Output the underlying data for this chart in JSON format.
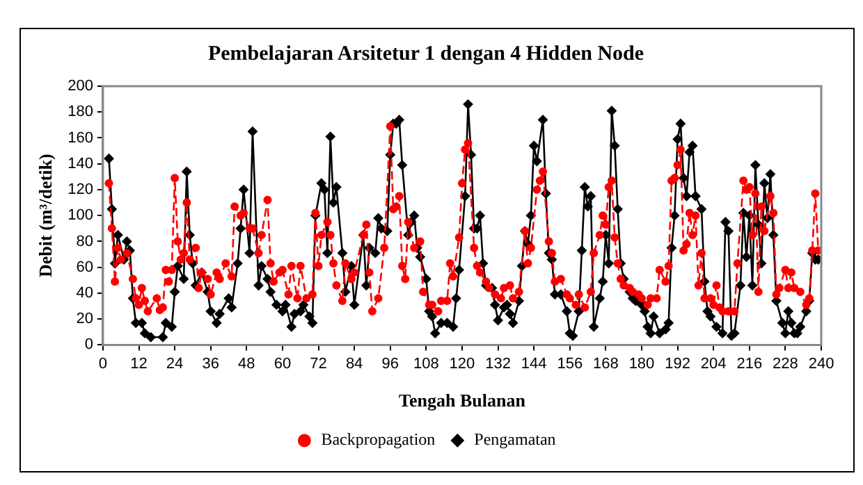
{
  "chart_data": {
    "type": "line",
    "title": "Pembelajaran Arsitetur 1 dengan 4 Hidden Node",
    "xlabel": "Tengah Bulanan",
    "ylabel": "Debit (m³/detik)",
    "xlim": [
      0,
      240
    ],
    "xticks": [
      0,
      12,
      24,
      36,
      48,
      60,
      72,
      84,
      96,
      108,
      120,
      132,
      144,
      156,
      168,
      180,
      192,
      204,
      216,
      228,
      240
    ],
    "ylim": [
      0,
      200
    ],
    "yticks": [
      0,
      20,
      40,
      60,
      80,
      100,
      120,
      140,
      160,
      180,
      200
    ],
    "grid": false,
    "legend": "bottom",
    "series": [
      {
        "name": "Backpropagation",
        "color": "#ff0000",
        "line_style": "dashed",
        "marker": "circle",
        "x": [
          2,
          3,
          4,
          5,
          6,
          8,
          10,
          11,
          12,
          13,
          14,
          15,
          18,
          19,
          20,
          21,
          22,
          23,
          24,
          25,
          26,
          27,
          28,
          29,
          31,
          32,
          33,
          35,
          36,
          38,
          39,
          41,
          43,
          44,
          46,
          47,
          49,
          50,
          52,
          53,
          55,
          56,
          57,
          59,
          60,
          62,
          63,
          65,
          66,
          68,
          70,
          71,
          72,
          73,
          75,
          76,
          77,
          78,
          80,
          81,
          83,
          84,
          87,
          88,
          89,
          90,
          92,
          94,
          96,
          97,
          98,
          99,
          100,
          101,
          102,
          104,
          106,
          107,
          109,
          110,
          112,
          113,
          115,
          116,
          117,
          119,
          120,
          121,
          122,
          124,
          125,
          126,
          128,
          129,
          131,
          133,
          134,
          136,
          137,
          139,
          141,
          142,
          143,
          145,
          146,
          147,
          149,
          150,
          151,
          153,
          155,
          156,
          158,
          159,
          161,
          163,
          164,
          166,
          167,
          168,
          169,
          170,
          171,
          172,
          173,
          174,
          176,
          177,
          179,
          180,
          182,
          183,
          185,
          186,
          188,
          189,
          190,
          191,
          192,
          193,
          194,
          195,
          196,
          197,
          198,
          199,
          200,
          201,
          203,
          204,
          205,
          206,
          207,
          209,
          211,
          212,
          214,
          215,
          216,
          217,
          218,
          219,
          220,
          221,
          223,
          224,
          225,
          226,
          228,
          229,
          230,
          231,
          233,
          235,
          236,
          237,
          238,
          239
        ],
        "values": [
          125,
          90,
          49,
          75,
          66,
          71,
          51,
          36,
          31,
          44,
          34,
          26,
          36,
          27,
          29,
          58,
          49,
          58,
          129,
          80,
          66,
          71,
          110,
          66,
          75,
          44,
          56,
          51,
          39,
          56,
          51,
          63,
          53,
          107,
          100,
          102,
          90,
          90,
          71,
          85,
          112,
          63,
          49,
          56,
          58,
          39,
          61,
          36,
          61,
          36,
          39,
          102,
          61,
          85,
          95,
          85,
          63,
          46,
          34,
          63,
          51,
          56,
          85,
          93,
          56,
          26,
          36,
          75,
          169,
          105,
          107,
          115,
          61,
          51,
          95,
          75,
          80,
          41,
          31,
          31,
          26,
          34,
          34,
          63,
          53,
          83,
          125,
          151,
          156,
          75,
          61,
          56,
          49,
          44,
          39,
          36,
          44,
          46,
          36,
          41,
          88,
          63,
          75,
          120,
          127,
          134,
          80,
          71,
          49,
          51,
          39,
          36,
          31,
          39,
          29,
          41,
          71,
          85,
          100,
          93,
          122,
          127,
          83,
          63,
          51,
          46,
          44,
          41,
          39,
          36,
          31,
          36,
          36,
          58,
          49,
          61,
          127,
          129,
          139,
          151,
          73,
          78,
          102,
          85,
          100,
          46,
          71,
          36,
          36,
          31,
          46,
          29,
          26,
          26,
          26,
          63,
          127,
          120,
          122,
          85,
          117,
          41,
          107,
          88,
          115,
          102,
          39,
          44,
          58,
          44,
          56,
          44,
          41,
          31,
          36,
          73,
          117,
          73
        ]
      },
      {
        "name": "Pengamatan",
        "color": "#000000",
        "line_style": "solid",
        "marker": "diamond",
        "x": [
          2,
          3,
          4,
          5,
          7,
          8,
          9,
          10,
          11,
          13,
          14,
          16,
          20,
          21,
          23,
          24,
          25,
          27,
          28,
          29,
          30,
          31,
          33,
          35,
          36,
          38,
          39,
          42,
          43,
          45,
          46,
          47,
          49,
          50,
          52,
          53,
          55,
          56,
          58,
          60,
          61,
          63,
          64,
          66,
          67,
          69,
          70,
          71,
          73,
          74,
          75,
          76,
          77,
          78,
          80,
          81,
          83,
          84,
          87,
          88,
          89,
          91,
          92,
          93,
          95,
          96,
          97,
          98,
          99,
          100,
          102,
          103,
          104,
          105,
          106,
          108,
          109,
          110,
          111,
          113,
          115,
          117,
          118,
          119,
          121,
          122,
          123,
          124,
          125,
          126,
          127,
          128,
          130,
          131,
          132,
          134,
          135,
          136,
          137,
          139,
          140,
          141,
          142,
          143,
          144,
          145,
          147,
          148,
          149,
          150,
          151,
          153,
          155,
          156,
          157,
          159,
          160,
          161,
          162,
          163,
          164,
          166,
          167,
          168,
          169,
          170,
          171,
          172,
          173,
          174,
          176,
          177,
          178,
          180,
          181,
          182,
          183,
          184,
          186,
          188,
          189,
          190,
          191,
          192,
          193,
          194,
          195,
          196,
          197,
          198,
          200,
          201,
          202,
          203,
          205,
          207,
          208,
          209,
          210,
          211,
          213,
          214,
          215,
          216,
          217,
          218,
          219,
          220,
          221,
          222,
          223,
          224,
          225,
          227,
          228,
          229,
          230,
          231,
          232,
          233,
          235,
          236,
          237,
          238,
          239
        ],
        "values": [
          144,
          105,
          63,
          85,
          66,
          80,
          73,
          36,
          17,
          17,
          9,
          6,
          6,
          17,
          14,
          41,
          61,
          51,
          134,
          85,
          63,
          46,
          56,
          41,
          26,
          17,
          24,
          36,
          29,
          63,
          90,
          120,
          71,
          165,
          46,
          61,
          51,
          41,
          31,
          26,
          31,
          14,
          24,
          26,
          31,
          22,
          17,
          100,
          125,
          120,
          71,
          161,
          110,
          122,
          71,
          41,
          61,
          31,
          85,
          46,
          75,
          71,
          98,
          90,
          88,
          147,
          171,
          171,
          174,
          139,
          85,
          95,
          100,
          75,
          68,
          51,
          26,
          22,
          9,
          17,
          17,
          14,
          36,
          58,
          115,
          186,
          147,
          90,
          90,
          100,
          63,
          46,
          44,
          31,
          19,
          29,
          31,
          24,
          17,
          34,
          61,
          88,
          78,
          100,
          154,
          142,
          174,
          117,
          71,
          66,
          39,
          39,
          26,
          9,
          7,
          26,
          73,
          122,
          107,
          115,
          14,
          36,
          49,
          85,
          63,
          181,
          154,
          105,
          63,
          51,
          41,
          36,
          34,
          31,
          26,
          14,
          9,
          22,
          9,
          12,
          17,
          75,
          100,
          159,
          171,
          129,
          115,
          149,
          154,
          115,
          105,
          49,
          26,
          22,
          14,
          9,
          95,
          88,
          7,
          9,
          46,
          102,
          68,
          100,
          46,
          139,
          93,
          63,
          125,
          98,
          132,
          85,
          34,
          17,
          9,
          26,
          17,
          9,
          9,
          14,
          26,
          34,
          71,
          66,
          66
        ]
      }
    ]
  }
}
